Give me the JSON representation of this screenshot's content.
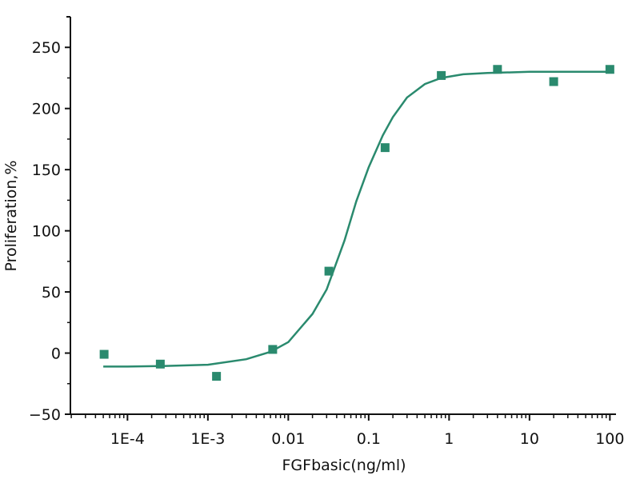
{
  "chart_data": {
    "type": "scatter",
    "title": "",
    "xlabel": "FGFbasic(ng/ml)",
    "ylabel": "Proliferation,%",
    "x_scale": "log",
    "xlim": [
      1.95e-05,
      100
    ],
    "ylim": [
      -50,
      275
    ],
    "grid": false,
    "legend": "none",
    "x_ticks": [
      {
        "value": 0.0001,
        "label": "1E-4"
      },
      {
        "value": 0.001,
        "label": "1E-3"
      },
      {
        "value": 0.01,
        "label": "0.01"
      },
      {
        "value": 0.1,
        "label": "0.1"
      },
      {
        "value": 1,
        "label": "1"
      },
      {
        "value": 10,
        "label": "10"
      },
      {
        "value": 100,
        "label": "100"
      }
    ],
    "y_ticks": [
      {
        "value": -50,
        "label": "−50"
      },
      {
        "value": 0,
        "label": "0"
      },
      {
        "value": 50,
        "label": "50"
      },
      {
        "value": 100,
        "label": "100"
      },
      {
        "value": 150,
        "label": "150"
      },
      {
        "value": 200,
        "label": "200"
      },
      {
        "value": 250,
        "label": "250"
      }
    ],
    "color": "#2a8a6e",
    "points": [
      {
        "x": 5.12e-05,
        "y": -1
      },
      {
        "x": 0.000256,
        "y": -9
      },
      {
        "x": 0.00128,
        "y": -19
      },
      {
        "x": 0.0064,
        "y": 3
      },
      {
        "x": 0.032,
        "y": 67
      },
      {
        "x": 0.16,
        "y": 168
      },
      {
        "x": 0.8,
        "y": 227
      },
      {
        "x": 4,
        "y": 232
      },
      {
        "x": 20,
        "y": 222
      },
      {
        "x": 100,
        "y": 232
      }
    ],
    "fit_curve": {
      "type": "line",
      "x": [
        5e-05,
        0.0001,
        0.0003,
        0.001,
        0.003,
        0.006,
        0.01,
        0.02,
        0.03,
        0.05,
        0.07,
        0.1,
        0.15,
        0.2,
        0.3,
        0.5,
        0.8,
        1.5,
        3,
        10,
        30,
        100
      ],
      "y": [
        -11,
        -11,
        -10.5,
        -9.5,
        -5,
        1,
        9,
        32,
        52,
        92,
        124,
        152,
        178,
        193,
        209,
        220,
        225,
        228,
        229,
        230,
        230,
        230
      ]
    }
  }
}
